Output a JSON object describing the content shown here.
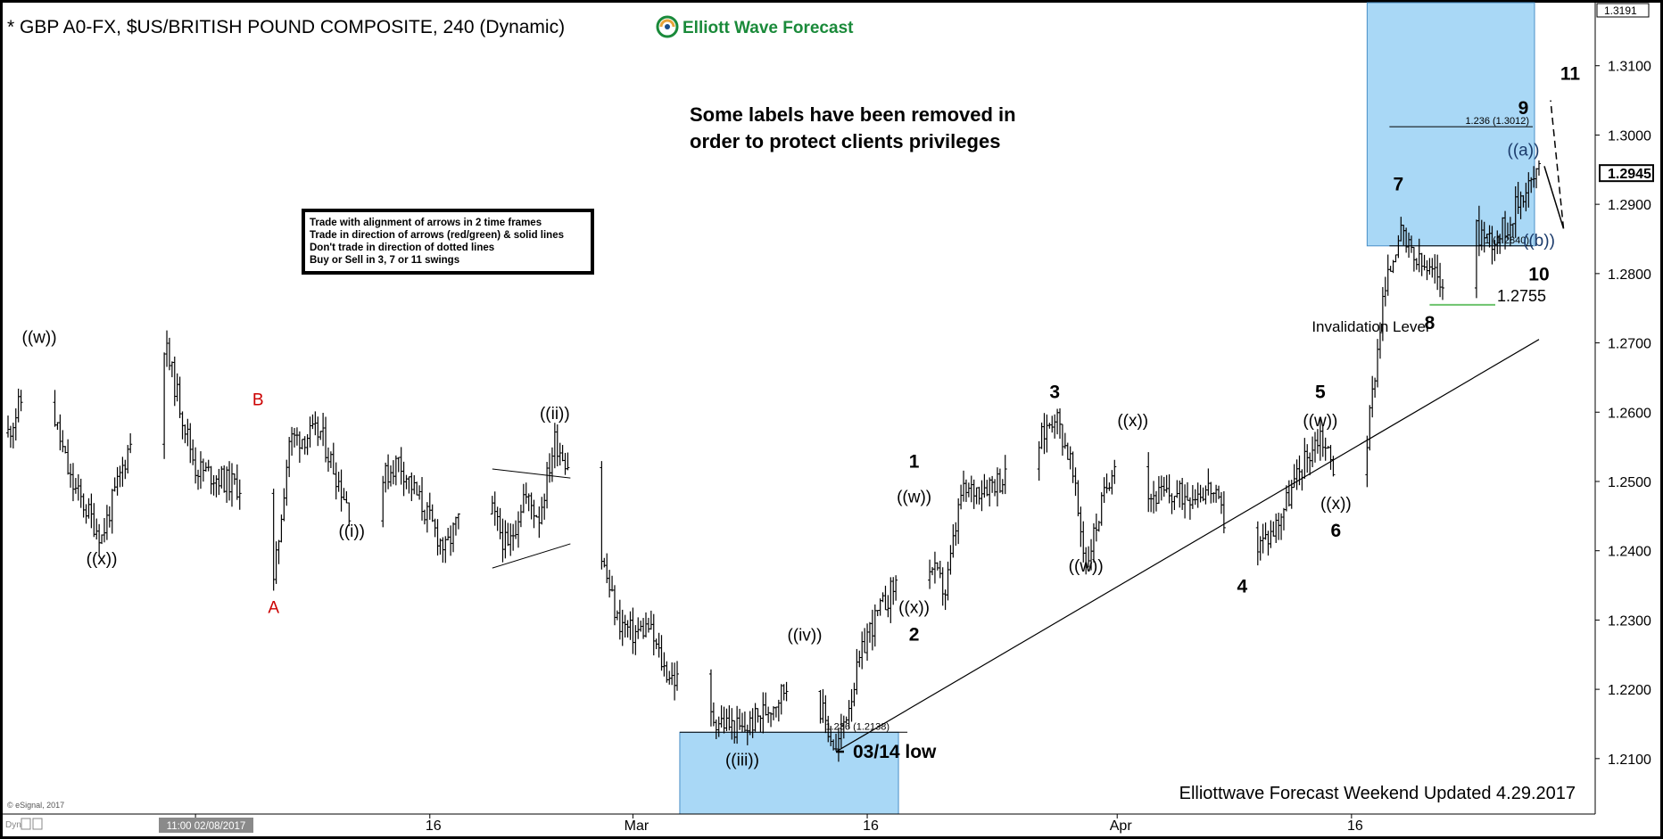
{
  "header": {
    "title": "* GBP A0-FX, $US/BRITISH POUND COMPOSITE, 240 (Dynamic)",
    "brand": "Elliott Wave Forecast"
  },
  "note": [
    "Some labels have been removed in",
    "order to protect clients privileges"
  ],
  "rules_box": [
    "Trade with alignment of arrows in 2 time frames",
    "Trade in direction of arrows (red/green) & solid lines",
    "Don't trade in direction of dotted lines",
    "Buy or Sell in 3, 7 or 11 swings"
  ],
  "footer": {
    "updated": "Elliottwave Forecast Weekend  Updated 4.29.2017",
    "copyright": "© eSignal, 2017",
    "dyn": "Dyn",
    "cursor_time": "11:00 02/08/2017"
  },
  "colors": {
    "background": "#ffffff",
    "bars": "#000000",
    "zone_fill": "#a9d8f6",
    "zone_stroke": "#4a8fc7",
    "red_label": "#cc0000",
    "green_line": "#6cc26c",
    "brand_green": "#1a8a3a"
  },
  "chart_data": {
    "type": "ohlc",
    "title": "* GBP A0-FX, $US/BRITISH POUND COMPOSITE, 240 (Dynamic)",
    "y_axis_ticks": [
      "1.3100",
      "1.3000",
      "1.2900",
      "1.2800",
      "1.2700",
      "1.2600",
      "1.2500",
      "1.2400",
      "1.2300",
      "1.2200",
      "1.2100"
    ],
    "y_range": [
      1.202,
      1.3191
    ],
    "top_price": "1.3191",
    "last_price": "1.2945",
    "x_axis_ticks": [
      "Feb",
      "16",
      "Mar",
      "16",
      "Apr",
      "16"
    ],
    "date_range": [
      "2017-01-20",
      "2017-04-28"
    ],
    "price_path": [
      [
        "2017-01-20",
        1.257
      ],
      [
        "2017-01-22",
        1.268
      ],
      [
        "2017-01-24",
        1.25
      ],
      [
        "2017-01-26",
        1.242
      ],
      [
        "2017-01-28",
        1.257
      ],
      [
        "2017-01-30",
        1.27
      ],
      [
        "2017-02-01",
        1.252
      ],
      [
        "2017-02-04",
        1.249
      ],
      [
        "2017-02-06",
        1.235
      ],
      [
        "2017-02-07",
        1.256
      ],
      [
        "2017-02-09",
        1.257
      ],
      [
        "2017-02-11",
        1.245
      ],
      [
        "2017-02-14",
        1.253
      ],
      [
        "2017-02-17",
        1.24
      ],
      [
        "2017-02-19",
        1.251
      ],
      [
        "2017-02-21",
        1.24
      ],
      [
        "2017-02-22",
        1.248
      ],
      [
        "2017-02-23",
        1.245
      ],
      [
        "2017-02-24",
        1.256
      ],
      [
        "2017-02-26",
        1.248
      ],
      [
        "2017-02-28",
        1.23
      ],
      [
        "2017-03-01",
        1.228
      ],
      [
        "2017-03-02",
        1.229
      ],
      [
        "2017-03-03",
        1.223
      ],
      [
        "2017-03-06",
        1.216
      ],
      [
        "2017-03-08",
        1.214
      ],
      [
        "2017-03-10",
        1.218
      ],
      [
        "2017-03-12",
        1.224
      ],
      [
        "2017-03-14",
        1.211
      ],
      [
        "2017-03-16",
        1.228
      ],
      [
        "2017-03-19",
        1.24
      ],
      [
        "2017-03-20",
        1.238
      ],
      [
        "2017-03-21",
        1.234
      ],
      [
        "2017-03-22",
        1.248
      ],
      [
        "2017-03-24",
        1.25
      ],
      [
        "2017-03-26",
        1.251
      ],
      [
        "2017-03-28",
        1.26
      ],
      [
        "2017-03-29",
        1.253
      ],
      [
        "2017-03-30",
        1.238
      ],
      [
        "2017-04-01",
        1.255
      ],
      [
        "2017-04-03",
        1.248
      ],
      [
        "2017-04-05",
        1.248
      ],
      [
        "2017-04-07",
        1.249
      ],
      [
        "2017-04-09",
        1.238
      ],
      [
        "2017-04-11",
        1.243
      ],
      [
        "2017-04-13",
        1.253
      ],
      [
        "2017-04-14",
        1.257
      ],
      [
        "2017-04-15",
        1.251
      ],
      [
        "2017-04-17",
        1.256
      ],
      [
        "2017-04-18",
        1.276
      ],
      [
        "2017-04-19",
        1.286
      ],
      [
        "2017-04-20",
        1.282
      ],
      [
        "2017-04-21",
        1.28
      ],
      [
        "2017-04-23",
        1.278
      ],
      [
        "2017-04-24",
        1.286
      ],
      [
        "2017-04-25",
        1.285
      ],
      [
        "2017-04-26",
        1.287
      ],
      [
        "2017-04-27",
        1.292
      ],
      [
        "2017-04-28",
        1.2945
      ]
    ],
    "target_zones": [
      {
        "from_date": "2017-04-17",
        "to_date": "2017-04-30",
        "from_price": 1.284,
        "to_price": 1.3191,
        "lines": [
          {
            "label": "1.236 (1.3012)",
            "price": 1.3012
          },
          {
            "label": "1 (1.2840)",
            "price": 1.284
          }
        ]
      },
      {
        "from_date": "2017-03-04",
        "to_date": "2017-03-18",
        "from_price": 1.202,
        "to_price": 1.2138,
        "lines": [
          {
            "label": "1.236 (1.2138)",
            "price": 1.2138
          }
        ]
      }
    ],
    "invalidation": {
      "value_label": "1.2755",
      "price": 1.2755,
      "label": "Invalidation Level"
    },
    "low_marker": {
      "label": "03/14 low",
      "date": "2017-03-14",
      "price": 1.211
    },
    "trendline": {
      "from": [
        "2017-03-14",
        1.211
      ],
      "to": [
        "2017-04-30",
        1.2705
      ]
    },
    "projection": {
      "from": [
        "2017-04-28",
        1.2955
      ],
      "to_b": [
        "2017-04-29",
        1.2865
      ],
      "to_end": [
        "2017-04-30",
        1.305
      ]
    },
    "triangle": {
      "upper": [
        [
          "2017-02-20",
          1.2518
        ],
        [
          "2017-02-25",
          1.2505
        ]
      ],
      "lower": [
        [
          "2017-02-20",
          1.2375
        ],
        [
          "2017-02-25",
          1.241
        ]
      ]
    },
    "wave_labels": [
      {
        "text": "((w))",
        "date": "2017-01-22",
        "price": 1.27,
        "color": "black"
      },
      {
        "text": "((x))",
        "date": "2017-01-26",
        "price": 1.238,
        "color": "black"
      },
      {
        "text": "B",
        "date": "2017-02-05",
        "price": 1.261,
        "color": "red"
      },
      {
        "text": "A",
        "date": "2017-02-06",
        "price": 1.231,
        "color": "red"
      },
      {
        "text": "((i))",
        "date": "2017-02-11",
        "price": 1.242,
        "color": "black"
      },
      {
        "text": "((ii))",
        "date": "2017-02-24",
        "price": 1.259,
        "color": "black"
      },
      {
        "text": "((iii))",
        "date": "2017-03-08",
        "price": 1.209,
        "color": "black"
      },
      {
        "text": "((iv))",
        "date": "2017-03-12",
        "price": 1.227,
        "color": "black"
      },
      {
        "text": "1",
        "date": "2017-03-19",
        "price": 1.252,
        "color": "black",
        "bold": true
      },
      {
        "text": "((w))",
        "date": "2017-03-19",
        "price": 1.247,
        "color": "black"
      },
      {
        "text": "((x))",
        "date": "2017-03-19",
        "price": 1.231,
        "color": "black"
      },
      {
        "text": "2",
        "date": "2017-03-19",
        "price": 1.227,
        "color": "black",
        "bold": true
      },
      {
        "text": "3",
        "date": "2017-03-28",
        "price": 1.262,
        "color": "black",
        "bold": true
      },
      {
        "text": "((x))",
        "date": "2017-04-02",
        "price": 1.258,
        "color": "black"
      },
      {
        "text": "((w))",
        "date": "2017-03-30",
        "price": 1.237,
        "color": "black"
      },
      {
        "text": "4",
        "date": "2017-04-09",
        "price": 1.234,
        "color": "black",
        "bold": true
      },
      {
        "text": "5",
        "date": "2017-04-14",
        "price": 1.262,
        "color": "black",
        "bold": true
      },
      {
        "text": "((w))",
        "date": "2017-04-14",
        "price": 1.258,
        "color": "black"
      },
      {
        "text": "((x))",
        "date": "2017-04-15",
        "price": 1.246,
        "color": "black"
      },
      {
        "text": "6",
        "date": "2017-04-15",
        "price": 1.242,
        "color": "black",
        "bold": true
      },
      {
        "text": "7",
        "date": "2017-04-19",
        "price": 1.292,
        "color": "black",
        "bold": true
      },
      {
        "text": "8",
        "date": "2017-04-21",
        "price": 1.272,
        "color": "black",
        "bold": true
      },
      {
        "text": "9",
        "date": "2017-04-27",
        "price": 1.303,
        "color": "black",
        "bold": true
      },
      {
        "text": "((a))",
        "date": "2017-04-27",
        "price": 1.297,
        "color": "blue"
      },
      {
        "text": "((b))",
        "date": "2017-04-28",
        "price": 1.284,
        "color": "blue"
      },
      {
        "text": "10",
        "date": "2017-04-28",
        "price": 1.279,
        "color": "black",
        "bold": true
      },
      {
        "text": "11",
        "date": "2017-04-30",
        "price": 1.308,
        "color": "black",
        "bold": true
      }
    ]
  }
}
